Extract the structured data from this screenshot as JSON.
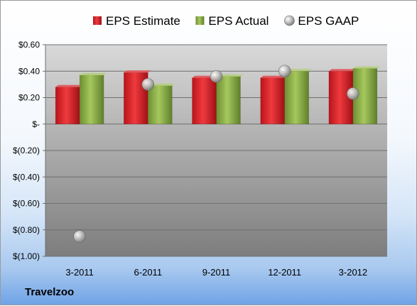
{
  "chart_data": {
    "type": "bar",
    "categories": [
      "3-2011",
      "6-2011",
      "9-2011",
      "12-2011",
      "3-2012"
    ],
    "series": [
      {
        "name": "EPS Estimate",
        "type": "bar",
        "color": "#c8161d",
        "values": [
          0.28,
          0.39,
          0.35,
          0.35,
          0.4
        ]
      },
      {
        "name": "EPS Actual",
        "type": "bar",
        "color": "#7fa33d",
        "values": [
          0.37,
          0.29,
          0.36,
          0.4,
          0.42
        ]
      },
      {
        "name": "EPS GAAP",
        "type": "marker",
        "color": "#b4b4b4",
        "values": [
          -0.85,
          0.3,
          0.36,
          0.4,
          0.23
        ]
      }
    ],
    "ylim": [
      -1.0,
      0.6
    ],
    "yticks": [
      0.6,
      0.4,
      0.2,
      0.0,
      -0.2,
      -0.4,
      -0.6,
      -0.8,
      -1.0
    ],
    "ytick_labels": [
      "$0.60",
      "$0.40",
      "$0.20",
      "$-",
      "$(0.20)",
      "$(0.40)",
      "$(0.60)",
      "$(0.80)",
      "$(1.00)"
    ],
    "grid": true,
    "legend_position": "top"
  },
  "footer": {
    "company": "Travelzoo"
  }
}
